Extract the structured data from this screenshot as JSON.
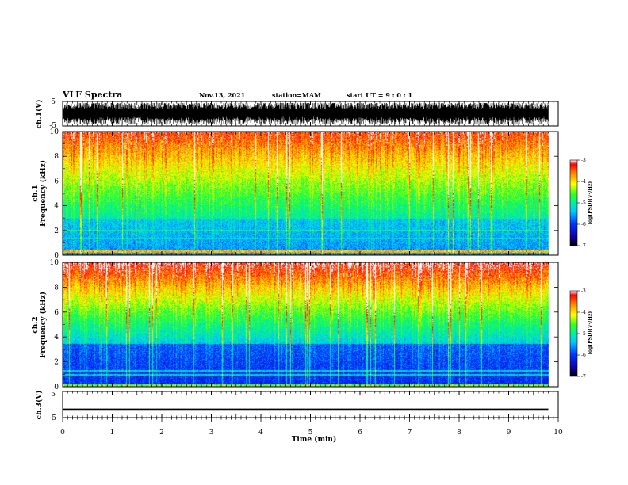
{
  "header": {
    "title": "VLF Spectra",
    "date": "Nov.13, 2021",
    "station": "station=MAM",
    "start": "start  UT =   9 : 0  : 1"
  },
  "chart_data": [
    {
      "type": "line",
      "panel": "ch1-waveform",
      "ylabel": "ch.1(V)",
      "ylim": [
        -5,
        5
      ],
      "yticks": [
        "5",
        "-5"
      ],
      "xlim": [
        0,
        10
      ],
      "color": "#000000"
    },
    {
      "type": "heatmap",
      "panel": "ch1-spectrogram",
      "ylabel_1": "ch.1",
      "ylabel_2": "Frequency  (kHz)",
      "ylim": [
        0,
        10
      ],
      "yticks": [
        "0",
        "2",
        "4",
        "6",
        "8",
        "10"
      ],
      "xlim": [
        0,
        10
      ],
      "data_extent_min": 9.8,
      "colorbar": {
        "label": "log(PSD)(V²/Hz)",
        "range": [
          -7,
          -3
        ],
        "ticks": [
          "-3",
          "-4",
          "-5",
          "-6",
          "-7"
        ]
      }
    },
    {
      "type": "heatmap",
      "panel": "ch2-spectrogram",
      "ylabel_1": "ch.2",
      "ylabel_2": "Frequency  (kHz)",
      "ylim": [
        0,
        10
      ],
      "yticks": [
        "0",
        "2",
        "4",
        "6",
        "8",
        "10"
      ],
      "xlim": [
        0,
        10
      ],
      "data_extent_min": 9.8,
      "colorbar": {
        "label": "log(PSD)(V²/Hz)",
        "range": [
          -7,
          -3
        ],
        "ticks": [
          "-3",
          "-4",
          "-5",
          "-6",
          "-7"
        ]
      }
    },
    {
      "type": "line",
      "panel": "ch3-waveform",
      "ylabel": "ch.3(V)",
      "ylim": [
        -5,
        5
      ],
      "yticks": [
        "5",
        "-5"
      ],
      "xlim": [
        0,
        10
      ],
      "level": -1.8,
      "color": "#000000"
    }
  ],
  "xaxis": {
    "label": "Time  (min)",
    "ticks": [
      "0",
      "1",
      "2",
      "3",
      "4",
      "5",
      "6",
      "7",
      "8",
      "9",
      "10"
    ]
  }
}
